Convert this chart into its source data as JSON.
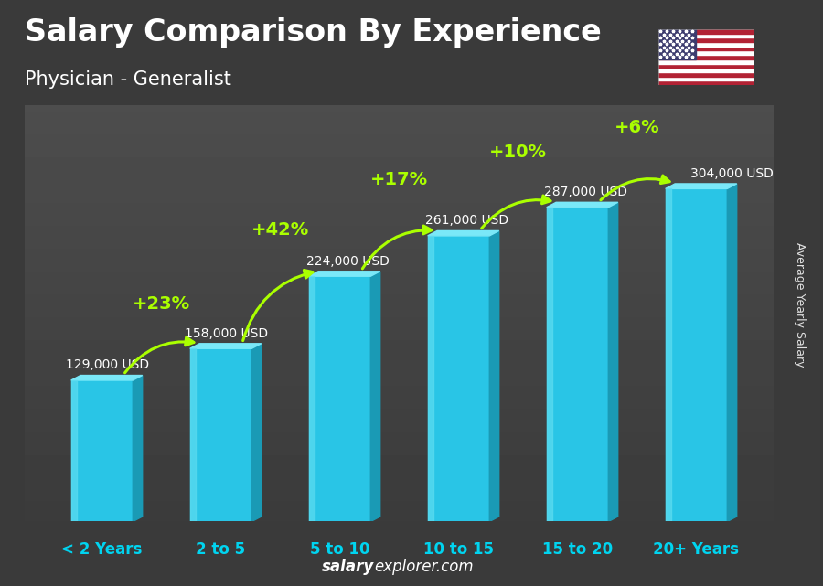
{
  "title": "Salary Comparison By Experience",
  "subtitle": "Physician - Generalist",
  "categories": [
    "< 2 Years",
    "2 to 5",
    "5 to 10",
    "10 to 15",
    "15 to 20",
    "20+ Years"
  ],
  "values": [
    129000,
    158000,
    224000,
    261000,
    287000,
    304000
  ],
  "labels": [
    "129,000 USD",
    "158,000 USD",
    "224,000 USD",
    "261,000 USD",
    "287,000 USD",
    "304,000 USD"
  ],
  "pct_changes": [
    "+23%",
    "+42%",
    "+17%",
    "+10%",
    "+6%"
  ],
  "bar_color_main": "#29c5e6",
  "bar_color_left": "#5ddcf0",
  "bar_color_right": "#1a9ab5",
  "bar_color_top": "#7ae8f8",
  "background_top": "#4a4a4a",
  "background_bottom": "#2a2a3a",
  "title_color": "#ffffff",
  "label_color": "#ffffff",
  "pct_color": "#aaff00",
  "xticklabel_color": "#00d4f0",
  "ylabel_text": "Average Yearly Salary",
  "footer_salary": "salary",
  "footer_explorer": "explorer.com",
  "ylim": [
    0,
    380000
  ],
  "bar_width": 0.52
}
